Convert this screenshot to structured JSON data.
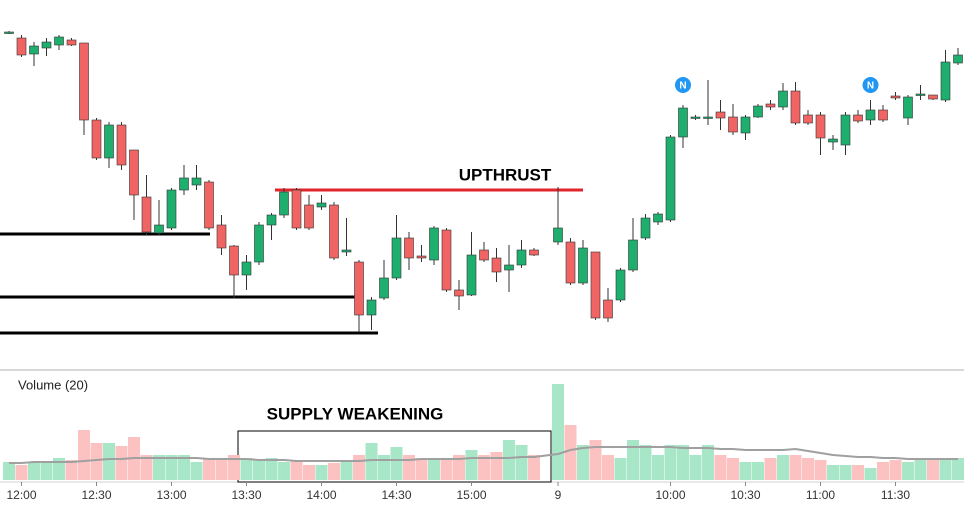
{
  "chart_data": {
    "type": "candlestick",
    "categories": [
      null,
      "12:00",
      null,
      null,
      null,
      null,
      null,
      "12:30",
      null,
      null,
      null,
      null,
      null,
      "13:00",
      null,
      null,
      null,
      null,
      null,
      "13:30",
      null,
      null,
      null,
      null,
      null,
      "14:00",
      null,
      null,
      null,
      null,
      null,
      "14:30",
      null,
      null,
      null,
      null,
      null,
      "15:00",
      null,
      null,
      null,
      null,
      null,
      "9",
      null,
      null,
      null,
      null,
      null,
      null,
      null,
      null,
      "10:00",
      null,
      null,
      null,
      null,
      null,
      "10:30",
      null,
      null,
      null,
      null,
      null,
      "11:00",
      null,
      null,
      null,
      null,
      null,
      "11:30",
      null,
      null,
      null,
      null,
      null
    ],
    "open": [
      367,
      362,
      346,
      352,
      355,
      360,
      357,
      280,
      242,
      275,
      250,
      203,
      167,
      172,
      210,
      215,
      218,
      175,
      154,
      125,
      138,
      175,
      185,
      210,
      195,
      193,
      195,
      148,
      138,
      85,
      102,
      122,
      162,
      144,
      140,
      170,
      110,
      105,
      150,
      142,
      130,
      135,
      150,
      158,
      158,
      117,
      148,
      100,
      100,
      130,
      162,
      178,
      180,
      263,
      282,
      282,
      288,
      283,
      267,
      283,
      296,
      293,
      309,
      285,
      285,
      258,
      255,
      285,
      280,
      290,
      304,
      282,
      305,
      305,
      300,
      337
    ],
    "high": [
      369,
      365,
      358,
      362,
      365,
      362,
      357,
      282,
      278,
      278,
      250,
      225,
      200,
      212,
      235,
      235,
      220,
      185,
      155,
      145,
      178,
      187,
      212,
      212,
      205,
      205,
      198,
      182,
      140,
      103,
      140,
      185,
      168,
      155,
      174,
      172,
      120,
      168,
      158,
      152,
      155,
      160,
      152,
      213,
      162,
      160,
      148,
      112,
      132,
      182,
      186,
      188,
      265,
      295,
      285,
      320,
      300,
      296,
      285,
      296,
      300,
      317,
      318,
      290,
      288,
      265,
      288,
      290,
      300,
      295,
      308,
      305,
      315,
      305,
      350,
      352
    ],
    "low": [
      366,
      343,
      334,
      344,
      350,
      354,
      265,
      240,
      232,
      230,
      180,
      165,
      165,
      170,
      205,
      210,
      170,
      145,
      102,
      110,
      135,
      160,
      182,
      170,
      170,
      190,
      140,
      144,
      68,
      70,
      100,
      120,
      130,
      138,
      135,
      108,
      90,
      104,
      138,
      118,
      108,
      132,
      144,
      155,
      115,
      115,
      80,
      78,
      98,
      128,
      160,
      175,
      178,
      252,
      280,
      275,
      270,
      265,
      260,
      282,
      290,
      290,
      275,
      275,
      245,
      250,
      245,
      277,
      275,
      278,
      300,
      275,
      300,
      300,
      298,
      335
    ],
    "close": [
      368,
      345,
      354,
      358,
      363,
      355,
      280,
      242,
      275,
      235,
      205,
      168,
      175,
      210,
      222,
      222,
      172,
      152,
      125,
      138,
      175,
      185,
      208,
      172,
      172,
      197,
      142,
      150,
      85,
      100,
      122,
      162,
      142,
      142,
      172,
      110,
      104,
      145,
      140,
      128,
      135,
      150,
      145,
      172,
      117,
      152,
      82,
      82,
      130,
      160,
      182,
      186,
      263,
      292,
      283,
      283,
      282,
      268,
      283,
      294,
      293,
      309,
      277,
      277,
      262,
      261,
      285,
      279,
      290,
      280,
      302,
      303,
      306,
      301,
      338,
      345
    ],
    "up_color": "#1eae6e",
    "down_color": "#f06464",
    "ylim": [
      55,
      400
    ],
    "levels": [
      {
        "value": 166,
        "color": "#000000"
      },
      {
        "value": 103,
        "color": "#000000"
      },
      {
        "value": 67,
        "color": "#000000"
      },
      {
        "value": 210,
        "color": "#e0262b"
      }
    ],
    "annotations": [
      "UPTHRUST",
      "SUPPLY WEAKENING"
    ],
    "markers": [
      "N",
      "N"
    ],
    "marker_color": "#2196f3",
    "volume": {
      "title": "Volume (20)",
      "values": [
        18,
        15,
        17,
        18,
        22,
        20,
        50,
        37,
        37,
        34,
        43,
        25,
        25,
        25,
        25,
        18,
        22,
        22,
        25,
        22,
        20,
        22,
        18,
        20,
        15,
        15,
        17,
        20,
        25,
        37,
        25,
        33,
        25,
        22,
        20,
        22,
        25,
        30,
        25,
        28,
        40,
        35,
        25,
        96,
        55,
        35,
        40,
        25,
        22,
        40,
        35,
        25,
        35,
        35,
        25,
        35,
        25,
        22,
        18,
        18,
        22,
        25,
        25,
        22,
        20,
        15,
        15,
        15,
        12,
        18,
        20,
        18,
        20,
        20,
        22,
        22
      ],
      "ma": [
        17,
        17,
        18,
        18,
        18,
        18,
        19,
        20,
        21,
        21,
        22,
        22,
        22,
        22,
        22,
        22,
        21,
        21,
        21,
        21,
        20,
        20,
        20,
        19,
        19,
        19,
        19,
        19,
        19,
        20,
        20,
        20,
        20,
        21,
        21,
        21,
        21,
        22,
        22,
        22,
        22,
        23,
        23,
        26,
        30,
        32,
        33,
        33,
        33,
        33,
        33,
        33,
        33,
        32,
        32,
        32,
        31,
        31,
        30,
        30,
        30,
        30,
        31,
        29,
        27,
        25,
        24,
        23,
        23,
        22,
        22,
        21,
        21,
        21,
        21,
        21
      ],
      "up_color": "#a8e6c8",
      "down_color": "#fcc2c2",
      "ma_color": "#a0a0a0",
      "ylim": [
        0,
        110
      ]
    }
  }
}
